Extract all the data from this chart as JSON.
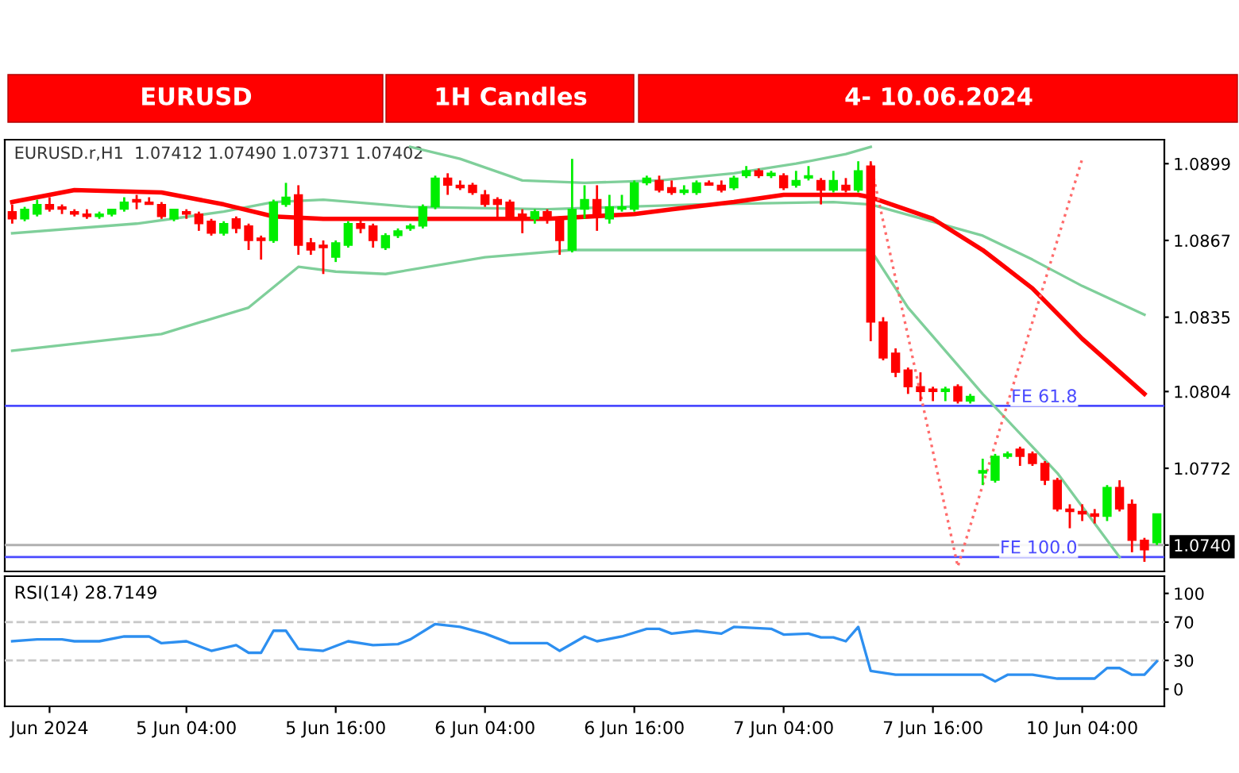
{
  "chart_data": [
    {
      "type": "candlestick",
      "title": "EURUSD",
      "subtitle": "1H Candles",
      "annotations": [
        "4- 10.06.2024",
        "EURUSD.r,H1  1.07412 1.07490 1.07371 1.07402"
      ],
      "categories": [
        null,
        null,
        null,
        null,
        null,
        null,
        null,
        null,
        null,
        null,
        null,
        null,
        null,
        null,
        null,
        null,
        null,
        null,
        null,
        null,
        null,
        null,
        null,
        null,
        null,
        null,
        null,
        null,
        null,
        null,
        null,
        null,
        null,
        null,
        null,
        null,
        null,
        null,
        null,
        null,
        null,
        null,
        null,
        null,
        null,
        null,
        null,
        null,
        null,
        null,
        null,
        null,
        null,
        null,
        null,
        null,
        null,
        null,
        null,
        null,
        null,
        null,
        null,
        null,
        null,
        null,
        null,
        null,
        null,
        null,
        null,
        null,
        null,
        null,
        null,
        null,
        null,
        null,
        null,
        null,
        null,
        null,
        null,
        null,
        null,
        null,
        null,
        null,
        null,
        null,
        null,
        null,
        null
      ],
      "ohlc": [
        [
          1.0879,
          1.0882,
          1.0874,
          1.0876
        ],
        [
          1.0876,
          1.0881,
          1.0875,
          1.088
        ],
        [
          1.0878,
          1.0884,
          1.0877,
          1.0882
        ],
        [
          1.0882,
          1.0885,
          1.0879,
          1.088
        ],
        [
          1.0881,
          1.0882,
          1.0878,
          1.088
        ],
        [
          1.0879,
          1.088,
          1.0877,
          1.0878
        ],
        [
          1.0878,
          1.088,
          1.0876,
          1.0877
        ],
        [
          1.0877,
          1.0879,
          1.0876,
          1.0878
        ],
        [
          1.0878,
          1.088,
          1.0877,
          1.088
        ],
        [
          1.088,
          1.0885,
          1.0879,
          1.0883
        ],
        [
          1.0884,
          1.0886,
          1.088,
          1.0883
        ],
        [
          1.0883,
          1.0885,
          1.0882,
          1.0882
        ],
        [
          1.0882,
          1.0883,
          1.0876,
          1.0877
        ],
        [
          1.0876,
          1.088,
          1.0875,
          1.088
        ],
        [
          1.0879,
          1.088,
          1.0876,
          1.0878
        ],
        [
          1.0878,
          1.0879,
          1.0871,
          1.0874
        ],
        [
          1.0875,
          1.0876,
          1.0869,
          1.087
        ],
        [
          1.087,
          1.0875,
          1.0869,
          1.0874
        ],
        [
          1.0876,
          1.0877,
          1.087,
          1.0872
        ],
        [
          1.0873,
          1.0874,
          1.0863,
          1.0867
        ],
        [
          1.0868,
          1.0869,
          1.0859,
          1.0867
        ],
        [
          1.0867,
          1.0884,
          1.0866,
          1.0883
        ],
        [
          1.0882,
          1.0891,
          1.0881,
          1.0885
        ],
        [
          1.0886,
          1.089,
          1.0861,
          1.0865
        ],
        [
          1.0866,
          1.0868,
          1.0861,
          1.0863
        ],
        [
          1.0865,
          1.0867,
          1.0853,
          1.0864
        ],
        [
          1.086,
          1.0867,
          1.0858,
          1.0866
        ],
        [
          1.0865,
          1.0875,
          1.0864,
          1.0874
        ],
        [
          1.0874,
          1.0876,
          1.087,
          1.0872
        ],
        [
          1.0873,
          1.0874,
          1.0864,
          1.0867
        ],
        [
          1.0864,
          1.087,
          1.0863,
          1.0869
        ],
        [
          1.0869,
          1.0872,
          1.0868,
          1.0871
        ],
        [
          1.0872,
          1.0874,
          1.0871,
          1.0873
        ],
        [
          1.0873,
          1.0882,
          1.0872,
          1.0881
        ],
        [
          1.0881,
          1.0894,
          1.088,
          1.0893
        ],
        [
          1.0893,
          1.0895,
          1.0886,
          1.089
        ],
        [
          1.089,
          1.0892,
          1.0888,
          1.0889
        ],
        [
          1.089,
          1.0891,
          1.0886,
          1.0887
        ],
        [
          1.0886,
          1.0888,
          1.0881,
          1.0882
        ],
        [
          1.0884,
          1.0885,
          1.0876,
          1.0882
        ],
        [
          1.0883,
          1.0884,
          1.0876,
          1.0877
        ],
        [
          1.0878,
          1.088,
          1.087,
          1.0877
        ],
        [
          1.0876,
          1.088,
          1.0874,
          1.0879
        ],
        [
          1.0879,
          1.088,
          1.0874,
          1.0876
        ],
        [
          1.0876,
          1.0877,
          1.0861,
          1.0867
        ],
        [
          1.0863,
          1.0901,
          1.0862,
          1.088
        ],
        [
          1.088,
          1.089,
          1.0876,
          1.0884
        ],
        [
          1.0884,
          1.089,
          1.0871,
          1.0878
        ],
        [
          1.0876,
          1.0886,
          1.0874,
          1.0881
        ],
        [
          1.088,
          1.0886,
          1.0879,
          1.0881
        ],
        [
          1.088,
          1.0892,
          1.0879,
          1.0891
        ],
        [
          1.0891,
          1.0894,
          1.089,
          1.0893
        ],
        [
          1.0892,
          1.0894,
          1.0887,
          1.0888
        ],
        [
          1.0889,
          1.0892,
          1.0886,
          1.0887
        ],
        [
          1.0887,
          1.089,
          1.0886,
          1.0888
        ],
        [
          1.0887,
          1.0892,
          1.0886,
          1.0891
        ],
        [
          1.0891,
          1.0892,
          1.089,
          1.089
        ],
        [
          1.089,
          1.0892,
          1.0887,
          1.0888
        ],
        [
          1.0889,
          1.0894,
          1.0888,
          1.0893
        ],
        [
          1.0894,
          1.0898,
          1.0893,
          1.0896
        ],
        [
          1.0896,
          1.0897,
          1.0893,
          1.0894
        ],
        [
          1.0894,
          1.0896,
          1.0893,
          1.0895
        ],
        [
          1.0894,
          1.0895,
          1.0888,
          1.0889
        ],
        [
          1.089,
          1.0896,
          1.0889,
          1.0892
        ],
        [
          1.0893,
          1.0898,
          1.0892,
          1.0894
        ],
        [
          1.0892,
          1.0893,
          1.0882,
          1.0888
        ],
        [
          1.0888,
          1.0896,
          1.0887,
          1.0892
        ],
        [
          1.089,
          1.0893,
          1.0887,
          1.0888
        ],
        [
          1.0888,
          1.09,
          1.0887,
          1.0896
        ],
        [
          1.0898,
          1.09,
          1.0825,
          1.0833
        ],
        [
          1.0833,
          1.0835,
          1.0817,
          1.0818
        ],
        [
          1.082,
          1.0822,
          1.081,
          1.0812
        ],
        [
          1.0813,
          1.0814,
          1.0803,
          1.0806
        ],
        [
          1.0806,
          1.0812,
          1.08,
          1.0804
        ],
        [
          1.0805,
          1.0806,
          1.08,
          1.0804
        ],
        [
          1.0804,
          1.0806,
          1.08,
          1.0805
        ],
        [
          1.0806,
          1.0807,
          1.0799,
          1.08
        ],
        [
          1.08,
          1.0803,
          1.0799,
          1.0802
        ],
        [
          1.077,
          1.0776,
          1.0765,
          1.0771
        ],
        [
          1.0767,
          1.0778,
          1.0766,
          1.0777
        ],
        [
          1.0777,
          1.0779,
          1.0776,
          1.0778
        ],
        [
          1.078,
          1.0781,
          1.0773,
          1.0777
        ],
        [
          1.0778,
          1.0779,
          1.0773,
          1.0774
        ],
        [
          1.0774,
          1.0775,
          1.0765,
          1.0767
        ],
        [
          1.0767,
          1.0768,
          1.0754,
          1.0755
        ],
        [
          1.0755,
          1.0757,
          1.0747,
          1.0754
        ],
        [
          1.0754,
          1.0757,
          1.075,
          1.0753
        ],
        [
          1.0753,
          1.0755,
          1.0749,
          1.0752
        ],
        [
          1.0752,
          1.0765,
          1.075,
          1.0764
        ],
        [
          1.0764,
          1.0767,
          1.0754,
          1.0755
        ],
        [
          1.0757,
          1.0759,
          1.0737,
          1.0742
        ],
        [
          1.0742,
          1.0743,
          1.0733,
          1.0738
        ],
        [
          1.0741,
          1.0753,
          1.074,
          1.0753
        ]
      ],
      "colors": [
        "#ff0000",
        "#00ee00",
        "#00ee00",
        "#ff0000",
        "#ff0000",
        "#ff0000",
        "#ff0000",
        "#00ee00",
        "#00ee00",
        "#00ee00",
        "#ff0000",
        "#ff0000",
        "#ff0000",
        "#00ee00",
        "#ff0000",
        "#ff0000",
        "#ff0000",
        "#00ee00",
        "#ff0000",
        "#ff0000",
        "#ff0000",
        "#00ee00",
        "#00ee00",
        "#ff0000",
        "#ff0000",
        "#ff0000",
        "#00ee00",
        "#00ee00",
        "#ff0000",
        "#ff0000",
        "#00ee00",
        "#00ee00",
        "#00ee00",
        "#00ee00",
        "#00ee00",
        "#ff0000",
        "#ff0000",
        "#ff0000",
        "#ff0000",
        "#ff0000",
        "#ff0000",
        "#ff0000",
        "#00ee00",
        "#ff0000",
        "#ff0000",
        "#00ee00",
        "#00ee00",
        "#ff0000",
        "#00ee00",
        "#00ee00",
        "#00ee00",
        "#00ee00",
        "#ff0000",
        "#ff0000",
        "#00ee00",
        "#00ee00",
        "#ff0000",
        "#ff0000",
        "#00ee00",
        "#00ee00",
        "#ff0000",
        "#00ee00",
        "#ff0000",
        "#00ee00",
        "#00ee00",
        "#ff0000",
        "#00ee00",
        "#ff0000",
        "#00ee00",
        "#ff0000",
        "#ff0000",
        "#ff0000",
        "#ff0000",
        "#ff0000",
        "#ff0000",
        "#00ee00",
        "#ff0000",
        "#00ee00",
        "#00ee00",
        "#00ee00",
        "#00ee00",
        "#ff0000",
        "#ff0000",
        "#ff0000",
        "#ff0000",
        "#ff0000",
        "#ff0000",
        "#ff0000",
        "#00ee00",
        "#ff0000",
        "#ff0000",
        "#ff0000",
        "#00ee00"
      ],
      "series": [
        {
          "type": "line",
          "color": "#7fcf9a",
          "values": [
            null,
            null,
            null,
            null,
            null,
            null,
            null,
            null,
            null,
            null,
            null,
            null,
            null,
            null,
            null,
            null,
            null,
            null,
            null,
            null,
            null,
            null,
            null,
            null,
            null,
            null,
            null,
            null,
            null,
            null,
            null,
            null,
            1.0906,
            null,
            null,
            null,
            1.0901,
            null,
            null,
            null,
            null,
            1.0892,
            null,
            null,
            null,
            null,
            1.0891,
            null,
            null,
            null,
            null,
            null,
            1.0892,
            null,
            null,
            null,
            null,
            null,
            1.0895,
            null,
            null,
            null,
            null,
            1.0899,
            null,
            null,
            null,
            1.0903,
            null,
            1.0906,
            null,
            null,
            null,
            null,
            null,
            null,
            null,
            null,
            null,
            null,
            null,
            null,
            null,
            null,
            null,
            null,
            null,
            null,
            null,
            null,
            null,
            null,
            null
          ]
        },
        {
          "type": "line",
          "color": "#7fcf9a",
          "values": [
            1.087,
            null,
            null,
            null,
            null,
            null,
            null,
            null,
            null,
            null,
            1.0874,
            null,
            null,
            null,
            null,
            null,
            null,
            1.0879,
            null,
            null,
            null,
            1.0883,
            null,
            null,
            null,
            1.0884,
            null,
            null,
            null,
            null,
            null,
            null,
            1.0881,
            null,
            null,
            null,
            null,
            null,
            null,
            null,
            null,
            null,
            null,
            1.088,
            null,
            null,
            null,
            null,
            null,
            null,
            null,
            null,
            null,
            null,
            null,
            1.0882,
            null,
            null,
            null,
            null,
            null,
            null,
            null,
            null,
            null,
            null,
            1.0883,
            null,
            null,
            1.0882,
            null,
            null,
            null,
            null,
            null,
            null,
            null,
            null,
            1.0869,
            null,
            null,
            null,
            1.0859,
            null,
            null,
            null,
            1.0848,
            null,
            null,
            null,
            null,
            1.0836,
            null
          ]
        },
        {
          "type": "line",
          "color": "#7fcf9a",
          "values": [
            1.0821,
            null,
            null,
            null,
            null,
            null,
            null,
            null,
            null,
            null,
            null,
            null,
            1.0828,
            null,
            null,
            null,
            null,
            null,
            null,
            1.0839,
            null,
            null,
            null,
            1.0856,
            null,
            null,
            1.0854,
            null,
            null,
            null,
            1.0853,
            null,
            null,
            null,
            null,
            null,
            null,
            null,
            1.086,
            null,
            null,
            null,
            null,
            null,
            null,
            1.0863,
            null,
            null,
            null,
            null,
            null,
            null,
            null,
            null,
            null,
            1.0863,
            null,
            null,
            null,
            null,
            null,
            null,
            null,
            null,
            null,
            null,
            1.0863,
            null,
            null,
            1.0863,
            null,
            null,
            1.0839,
            null,
            null,
            null,
            null,
            null,
            1.0803,
            null,
            null,
            null,
            null,
            null,
            1.077,
            null,
            null,
            null,
            null,
            1.0735,
            null,
            null,
            null
          ]
        },
        {
          "type": "line",
          "color": "#ff0000",
          "values": [
            1.0883,
            null,
            null,
            null,
            null,
            1.0888,
            null,
            null,
            null,
            null,
            null,
            null,
            1.0887,
            null,
            null,
            null,
            null,
            1.0882,
            null,
            null,
            null,
            1.0877,
            null,
            null,
            null,
            1.0876,
            null,
            null,
            null,
            1.0876,
            null,
            null,
            1.0876,
            null,
            null,
            null,
            null,
            null,
            null,
            null,
            null,
            null,
            null,
            1.0876,
            null,
            null,
            null,
            null,
            null,
            null,
            1.0878,
            null,
            null,
            1.088,
            null,
            null,
            null,
            null,
            1.0883,
            null,
            null,
            null,
            1.0886,
            null,
            null,
            null,
            null,
            null,
            1.0886,
            1.0885,
            null,
            null,
            null,
            null,
            1.0876,
            null,
            null,
            null,
            1.0863,
            null,
            null,
            null,
            1.0847,
            null,
            null,
            null,
            1.0826,
            null,
            null,
            null,
            null,
            1.0803,
            null
          ]
        },
        {
          "type": "line",
          "color": "#ff6b6b",
          "line_style": "dotted",
          "values": [
            null,
            null,
            null,
            null,
            null,
            null,
            null,
            null,
            null,
            null,
            null,
            null,
            null,
            null,
            null,
            null,
            null,
            null,
            null,
            null,
            null,
            null,
            null,
            null,
            null,
            null,
            null,
            null,
            null,
            null,
            null,
            null,
            null,
            null,
            null,
            null,
            null,
            null,
            null,
            null,
            null,
            null,
            null,
            null,
            null,
            null,
            null,
            null,
            null,
            null,
            null,
            null,
            null,
            null,
            null,
            null,
            null,
            null,
            null,
            null,
            null,
            null,
            null,
            null,
            null,
            null,
            null,
            null,
            null,
            1.0899,
            null,
            null,
            null,
            null,
            null,
            null,
            1.0731,
            null,
            null,
            null,
            null,
            null,
            null,
            null,
            null,
            null,
            1.0901,
            null,
            null,
            null,
            null,
            null,
            null
          ]
        }
      ],
      "ylim": [
        1.0729,
        1.0909
      ],
      "yticks": [
        1.0899,
        1.0867,
        1.0835,
        1.0804,
        1.0772,
        {
          "value": 1.074,
          "label": "1.0740"
        }
      ],
      "tick_labels": "y",
      "ref_lines": [
        {
          "axis": "y",
          "value": 1.0798,
          "label": "FE 61.8",
          "color": "#4a4aff"
        },
        {
          "axis": "y",
          "value": 1.0735,
          "label": "FE 100.0",
          "color": "#4a4aff"
        },
        {
          "axis": "y",
          "value": 1.074,
          "color": "#b0b0b0"
        }
      ]
    },
    {
      "type": "line",
      "title": "RSI(14) 28.7149",
      "series": [
        {
          "color": "#2d8ff0",
          "values": [
            50,
            null,
            52,
            null,
            52,
            50,
            null,
            50,
            null,
            55,
            null,
            55,
            48,
            null,
            50,
            null,
            40,
            null,
            46,
            38,
            38,
            61,
            61,
            42,
            null,
            40,
            null,
            50,
            null,
            46,
            null,
            47,
            52,
            null,
            68,
            null,
            65,
            null,
            58,
            null,
            48,
            null,
            null,
            48,
            40,
            null,
            55,
            50,
            null,
            55,
            null,
            63,
            63,
            58,
            null,
            61,
            null,
            58,
            65,
            null,
            null,
            63,
            57,
            null,
            58,
            54,
            54,
            50,
            65,
            19,
            null,
            15,
            null,
            null,
            null,
            null,
            null,
            null,
            15,
            8,
            15,
            null,
            15,
            null,
            11,
            null,
            null,
            11,
            22,
            22,
            15,
            15,
            29
          ]
        }
      ],
      "ylim": [
        -18,
        118
      ],
      "yticks": [
        0,
        30,
        70,
        100
      ],
      "categories": [
        null,
        null,
        null,
        "Jun 2024",
        null,
        null,
        null,
        null,
        null,
        null,
        null,
        null,
        null,
        null,
        "5 Jun 04:00",
        null,
        null,
        null,
        null,
        null,
        null,
        null,
        null,
        null,
        null,
        null,
        "5 Jun 16:00",
        null,
        null,
        null,
        null,
        null,
        null,
        null,
        null,
        null,
        null,
        null,
        "6 Jun 04:00",
        null,
        null,
        null,
        null,
        null,
        null,
        null,
        null,
        null,
        null,
        null,
        "6 Jun 16:00",
        null,
        null,
        null,
        null,
        null,
        null,
        null,
        null,
        null,
        null,
        null,
        "7 Jun 04:00",
        null,
        null,
        null,
        null,
        null,
        null,
        null,
        null,
        null,
        null,
        null,
        "7 Jun 16:00",
        null,
        null,
        null,
        null,
        null,
        null,
        null,
        null,
        null,
        null,
        null,
        "10 Jun 04:00",
        null,
        null,
        null,
        null,
        null,
        null
      ],
      "ref_lines": [
        {
          "axis": "y",
          "value": 30,
          "color": "#c8c8c8",
          "line_style": "dashed"
        },
        {
          "axis": "y",
          "value": 70,
          "color": "#c8c8c8",
          "line_style": "dashed"
        }
      ]
    }
  ]
}
